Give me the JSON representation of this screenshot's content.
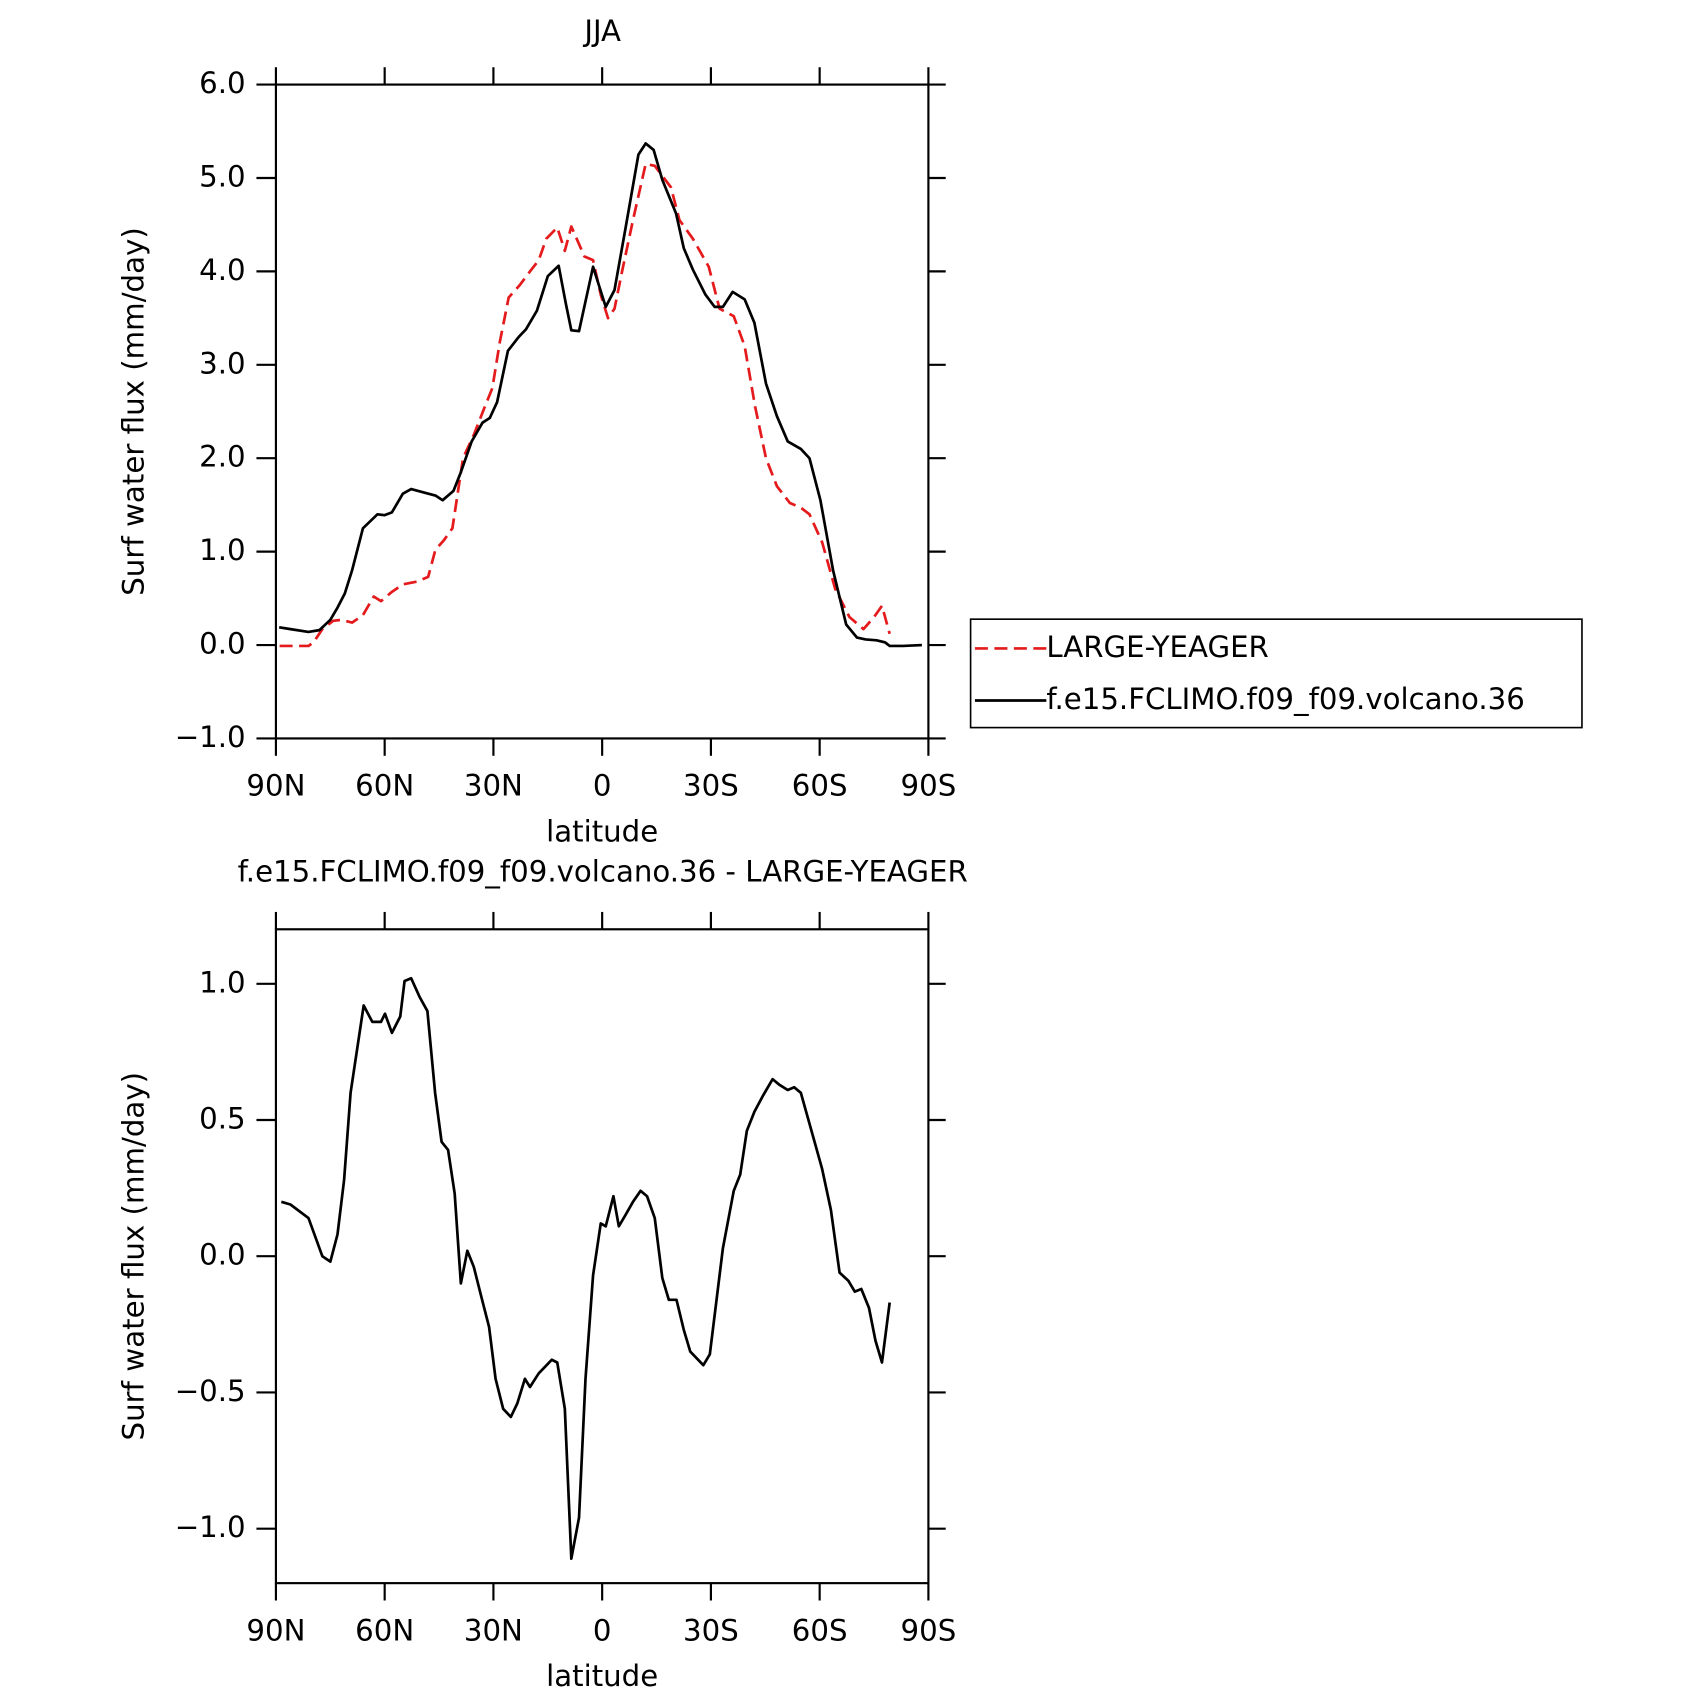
{
  "chart_data": [
    {
      "type": "line",
      "title": "JJA",
      "xlabel": "latitude",
      "ylabel": "Surf water flux (mm/day)",
      "xlim": [
        90,
        -90
      ],
      "xticks": [
        {
          "value": 90,
          "label": "90N"
        },
        {
          "value": 60,
          "label": "60N"
        },
        {
          "value": 30,
          "label": "30N"
        },
        0,
        {
          "value": -30,
          "label": "30S"
        },
        {
          "value": -60,
          "label": "60S"
        },
        {
          "value": -90,
          "label": "90S"
        }
      ],
      "ylim": [
        -1,
        6
      ],
      "yticks": [
        {
          "value": -1,
          "label": "−1.0"
        },
        {
          "value": 0,
          "label": "0.0"
        },
        {
          "value": 1,
          "label": "1.0"
        },
        {
          "value": 2,
          "label": "2.0"
        },
        {
          "value": 3,
          "label": "3.0"
        },
        {
          "value": 4,
          "label": "4.0"
        },
        {
          "value": 5,
          "label": "5.0"
        },
        {
          "value": 6,
          "label": "6.0"
        }
      ],
      "legend": "right",
      "series": [
        {
          "name": "LARGE-YEAGER",
          "color": "#e41a1c",
          "dash": true,
          "x": [
            89,
            81,
            79.6,
            77.2,
            74.2,
            71.8,
            69,
            66,
            63,
            61,
            58,
            55,
            51,
            48,
            46,
            43.7,
            41.3,
            38.4,
            35.4,
            32.4,
            30.3,
            28.2,
            25.8,
            22.8,
            19.9,
            17.5,
            15.4,
            12.4,
            10.3,
            8.5,
            4.9,
            2.5,
            0.4,
            -1.6,
            -3.4,
            -5.5,
            -8.5,
            -12,
            -14.5,
            -19,
            -21.3,
            -25,
            -29.4,
            -32.4,
            -36.3,
            -39.3,
            -42.2,
            -45.2,
            -48.2,
            -51.8,
            -54.8,
            -57.2,
            -60.7,
            -64.3,
            -68.2,
            -72.1,
            -75,
            -77.2,
            -79.3
          ],
          "values": [
            -0.01,
            -0.01,
            0.03,
            0.17,
            0.26,
            0.27,
            0.24,
            0.32,
            0.52,
            0.47,
            0.57,
            0.65,
            0.68,
            0.73,
            1.02,
            1.12,
            1.25,
            2.0,
            2.25,
            2.55,
            2.75,
            3.25,
            3.72,
            3.85,
            4.0,
            4.12,
            4.35,
            4.47,
            4.22,
            4.48,
            4.16,
            4.12,
            3.75,
            3.5,
            3.6,
            4.0,
            4.55,
            5.15,
            5.13,
            4.9,
            4.55,
            4.35,
            4.05,
            3.6,
            3.52,
            3.2,
            2.55,
            2.0,
            1.7,
            1.52,
            1.47,
            1.4,
            1.1,
            0.6,
            0.3,
            0.17,
            0.3,
            0.42,
            0.12
          ]
        },
        {
          "name": "f.e15.FCLIMO.f09_f09.volcano.36",
          "color": "#000000",
          "dash": false,
          "x": [
            89.1,
            86,
            81,
            78,
            75,
            73,
            71,
            69,
            66,
            62,
            60,
            58,
            55,
            52.7,
            49,
            46,
            44,
            41,
            39,
            36,
            33,
            31,
            29,
            26,
            23,
            21,
            18,
            15,
            12,
            10,
            8.5,
            6.4,
            2.5,
            -1,
            -3.4,
            -6.4,
            -10,
            -12,
            -14.2,
            -16.6,
            -20.4,
            -22.5,
            -25,
            -28.5,
            -31,
            -33.3,
            -36,
            -39.3,
            -42,
            -45.2,
            -48.2,
            -51.2,
            -54.8,
            -57.2,
            -60.2,
            -63.7,
            -67.3,
            -70.3,
            -72.7,
            -75.7,
            -78,
            -79.3,
            -83,
            -88.2
          ],
          "values": [
            0.19,
            0.17,
            0.14,
            0.16,
            0.27,
            0.4,
            0.55,
            0.8,
            1.25,
            1.4,
            1.39,
            1.42,
            1.62,
            1.67,
            1.63,
            1.6,
            1.55,
            1.65,
            1.85,
            2.18,
            2.38,
            2.43,
            2.6,
            3.15,
            3.3,
            3.38,
            3.58,
            3.95,
            4.06,
            3.65,
            3.37,
            3.36,
            4.05,
            3.62,
            3.8,
            4.45,
            5.25,
            5.37,
            5.3,
            4.98,
            4.62,
            4.25,
            4.02,
            3.75,
            3.62,
            3.62,
            3.78,
            3.7,
            3.45,
            2.8,
            2.45,
            2.18,
            2.1,
            2.0,
            1.55,
            0.8,
            0.22,
            0.08,
            0.06,
            0.05,
            0.03,
            -0.01,
            -0.01,
            0.0
          ]
        }
      ]
    },
    {
      "type": "line",
      "title": "f.e15.FCLIMO.f09_f09.volcano.36 - LARGE-YEAGER",
      "xlabel": "latitude",
      "ylabel": "Surf water flux (mm/day)",
      "xlim": [
        90,
        -90
      ],
      "xticks": [
        {
          "value": 90,
          "label": "90N"
        },
        {
          "value": 60,
          "label": "60N"
        },
        {
          "value": 30,
          "label": "30N"
        },
        0,
        {
          "value": -30,
          "label": "30S"
        },
        {
          "value": -60,
          "label": "60S"
        },
        {
          "value": -90,
          "label": "90S"
        }
      ],
      "ylim": [
        -1.2,
        1.2
      ],
      "yticks": [
        {
          "value": -1,
          "label": "−1.0"
        },
        {
          "value": -0.5,
          "label": "−0.5"
        },
        {
          "value": 0,
          "label": "0.0"
        },
        {
          "value": 0.5,
          "label": "0.5"
        },
        {
          "value": 1,
          "label": "1.0"
        }
      ],
      "color": "#000000",
      "x": [
        88.5,
        86,
        81,
        77.2,
        75,
        73,
        71.2,
        69.4,
        65.8,
        63.4,
        61,
        59.9,
        58,
        55.7,
        54.5,
        52.7,
        50.3,
        48.2,
        46.1,
        44.3,
        42.5,
        40.7,
        39,
        37.2,
        35.4,
        33.3,
        31.2,
        29.4,
        27.3,
        25.2,
        23.4,
        21.3,
        19.9,
        17.5,
        13.9,
        12.4,
        10.3,
        8.5,
        6.4,
        4.6,
        2.5,
        0.4,
        -1,
        -3.1,
        -4.6,
        -6.4,
        -8.5,
        -10.6,
        -12.4,
        -14.5,
        -16.6,
        -18.4,
        -20.5,
        -22.5,
        -24.3,
        -27.9,
        -29.7,
        -33.3,
        -36.3,
        -38.1,
        -39.9,
        -42,
        -44.4,
        -47,
        -48.8,
        -51.2,
        -53,
        -54.8,
        -58.4,
        -60.7,
        -63.1,
        -65.5,
        -67.9,
        -69.7,
        -71.5,
        -73.6,
        -75.4,
        -77.2,
        -79.3
      ],
      "values": [
        0.2,
        0.19,
        0.14,
        0.0,
        -0.02,
        0.08,
        0.28,
        0.6,
        0.92,
        0.86,
        0.86,
        0.89,
        0.82,
        0.88,
        1.01,
        1.02,
        0.95,
        0.9,
        0.6,
        0.42,
        0.39,
        0.23,
        -0.1,
        0.02,
        -0.04,
        -0.15,
        -0.26,
        -0.45,
        -0.56,
        -0.59,
        -0.54,
        -0.45,
        -0.48,
        -0.43,
        -0.38,
        -0.39,
        -0.56,
        -1.11,
        -0.96,
        -0.45,
        -0.07,
        0.12,
        0.11,
        0.22,
        0.11,
        0.15,
        0.2,
        0.24,
        0.22,
        0.14,
        -0.08,
        -0.16,
        -0.16,
        -0.27,
        -0.35,
        -0.4,
        -0.36,
        0.03,
        0.24,
        0.3,
        0.46,
        0.53,
        0.59,
        0.65,
        0.63,
        0.61,
        0.62,
        0.6,
        0.43,
        0.32,
        0.17,
        -0.06,
        -0.09,
        -0.13,
        -0.12,
        -0.19,
        -0.31,
        -0.39,
        -0.17
      ]
    }
  ]
}
